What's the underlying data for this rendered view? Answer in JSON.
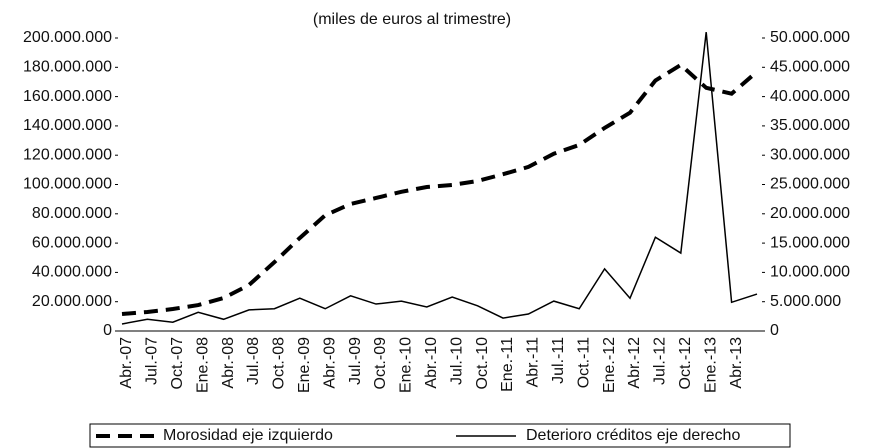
{
  "chart_data": {
    "type": "line",
    "title": "(miles de euros al trimestre)",
    "categories": [
      "Abr.-07",
      "Jul.-07",
      "Oct.-07",
      "Ene.-08",
      "Abr.-08",
      "Jul.-08",
      "Oct.-08",
      "Ene.-09",
      "Abr.-09",
      "Jul.-09",
      "Oct.-09",
      "Ene.-10",
      "Abr.-10",
      "Jul.-10",
      "Oct.-10",
      "Ene.-11",
      "Abr.-11",
      "Jul.-11",
      "Oct.-11",
      "Ene.-12",
      "Abr.-12",
      "Jul.-12",
      "Oct.-12",
      "Ene.-13",
      "Abr.-13",
      null
    ],
    "series": [
      {
        "name": "Morosidad eje izquierdo",
        "color": "#000000",
        "line_style": "dashed",
        "values": [
          11600000,
          13000000,
          15000000,
          17700000,
          22500000,
          31400000,
          47000000,
          63500000,
          79000000,
          86700000,
          90800000,
          95000000,
          98300000,
          99700000,
          102400000,
          107000000,
          112000000,
          121000000,
          127000000,
          138600000,
          149000000,
          171000000,
          181600000,
          166000000,
          162000000,
          177000000
        ]
      },
      {
        "name": "Deterioro créditos eje derecho",
        "color": "#000000",
        "line_style": "solid",
        "axis": "y2",
        "values": [
          1200000,
          2000000,
          1500000,
          3200000,
          2000000,
          3600000,
          3800000,
          5600000,
          3800000,
          6000000,
          4600000,
          5100000,
          4100000,
          5800000,
          4300000,
          2200000,
          2900000,
          5100000,
          3800000,
          10600000,
          5600000,
          16000000,
          13300000,
          51000000,
          4900000,
          6300000
        ]
      }
    ],
    "ylim": [
      0,
      200000000
    ],
    "yticks": [
      0,
      {
        "value": 20000000,
        "label": "20.000.000"
      },
      {
        "value": 40000000,
        "label": "40.000.000"
      },
      {
        "value": 60000000,
        "label": "60.000.000"
      },
      {
        "value": 80000000,
        "label": "80.000.000"
      },
      {
        "value": 100000000,
        "label": "100.000.000"
      },
      {
        "value": 120000000,
        "label": "120.000.000"
      },
      {
        "value": 140000000,
        "label": "140.000.000"
      },
      {
        "value": 160000000,
        "label": "160.000.000"
      },
      {
        "value": 180000000,
        "label": "180.000.000"
      },
      {
        "value": 200000000,
        "label": "200.000.000"
      }
    ],
    "y2lim": [
      0,
      50000000
    ],
    "y2ticks": [
      0,
      {
        "value": 5000000,
        "label": "5.000.000"
      },
      {
        "value": 10000000,
        "label": "10.000.000"
      },
      {
        "value": 15000000,
        "label": "15.000.000"
      },
      {
        "value": 20000000,
        "label": "20.000.000"
      },
      {
        "value": 25000000,
        "label": "25.000.000"
      },
      {
        "value": 30000000,
        "label": "30.000.000"
      },
      {
        "value": 35000000,
        "label": "35.000.000"
      },
      {
        "value": 40000000,
        "label": "40.000.000"
      },
      {
        "value": 45000000,
        "label": "45.000.000"
      },
      {
        "value": 50000000,
        "label": "50.000.000"
      }
    ],
    "grid": false,
    "legend": "bottom"
  }
}
